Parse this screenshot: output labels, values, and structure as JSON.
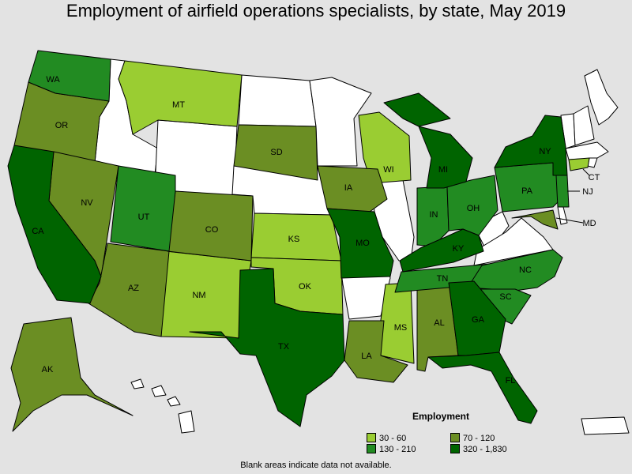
{
  "title": "Employment of airfield operations specialists, by state, May 2019",
  "footnote": "Blank areas indicate data not available.",
  "legend": {
    "title": "Employment",
    "items": [
      {
        "label": "30 - 60",
        "color": "#9acd32"
      },
      {
        "label": "70 - 120",
        "color": "#6b8e23"
      },
      {
        "label": "130 - 210",
        "color": "#228b22"
      },
      {
        "label": "320 - 1,830",
        "color": "#006400"
      }
    ]
  },
  "colors": {
    "background": "#e3e3e3",
    "no_data": "#ffffff",
    "border": "#000000"
  },
  "states_labeled": [
    {
      "abbr": "WA",
      "class": "130 - 210"
    },
    {
      "abbr": "OR",
      "class": "70 - 120"
    },
    {
      "abbr": "CA",
      "class": "320 - 1,830"
    },
    {
      "abbr": "NV",
      "class": "70 - 120"
    },
    {
      "abbr": "MT",
      "class": "30 - 60"
    },
    {
      "abbr": "UT",
      "class": "130 - 210"
    },
    {
      "abbr": "AZ",
      "class": "70 - 120"
    },
    {
      "abbr": "CO",
      "class": "70 - 120"
    },
    {
      "abbr": "NM",
      "class": "30 - 60"
    },
    {
      "abbr": "SD",
      "class": "70 - 120"
    },
    {
      "abbr": "KS",
      "class": "30 - 60"
    },
    {
      "abbr": "OK",
      "class": "30 - 60"
    },
    {
      "abbr": "TX",
      "class": "320 - 1,830"
    },
    {
      "abbr": "IA",
      "class": "70 - 120"
    },
    {
      "abbr": "MO",
      "class": "320 - 1,830"
    },
    {
      "abbr": "LA",
      "class": "70 - 120"
    },
    {
      "abbr": "WI",
      "class": "30 - 60"
    },
    {
      "abbr": "MI",
      "class": "320 - 1,830"
    },
    {
      "abbr": "IN",
      "class": "130 - 210"
    },
    {
      "abbr": "OH",
      "class": "130 - 210"
    },
    {
      "abbr": "KY",
      "class": "320 - 1,830"
    },
    {
      "abbr": "TN",
      "class": "130 - 210"
    },
    {
      "abbr": "MS",
      "class": "30 - 60"
    },
    {
      "abbr": "AL",
      "class": "70 - 120"
    },
    {
      "abbr": "GA",
      "class": "320 - 1,830"
    },
    {
      "abbr": "FL",
      "class": "320 - 1,830"
    },
    {
      "abbr": "SC",
      "class": "130 - 210"
    },
    {
      "abbr": "NC",
      "class": "130 - 210"
    },
    {
      "abbr": "PA",
      "class": "130 - 210"
    },
    {
      "abbr": "NY",
      "class": "320 - 1,830"
    },
    {
      "abbr": "NJ",
      "class": "130 - 210"
    },
    {
      "abbr": "MD",
      "class": "70 - 120"
    },
    {
      "abbr": "CT",
      "class": "30 - 60"
    },
    {
      "abbr": "AK",
      "class": "70 - 120"
    }
  ]
}
